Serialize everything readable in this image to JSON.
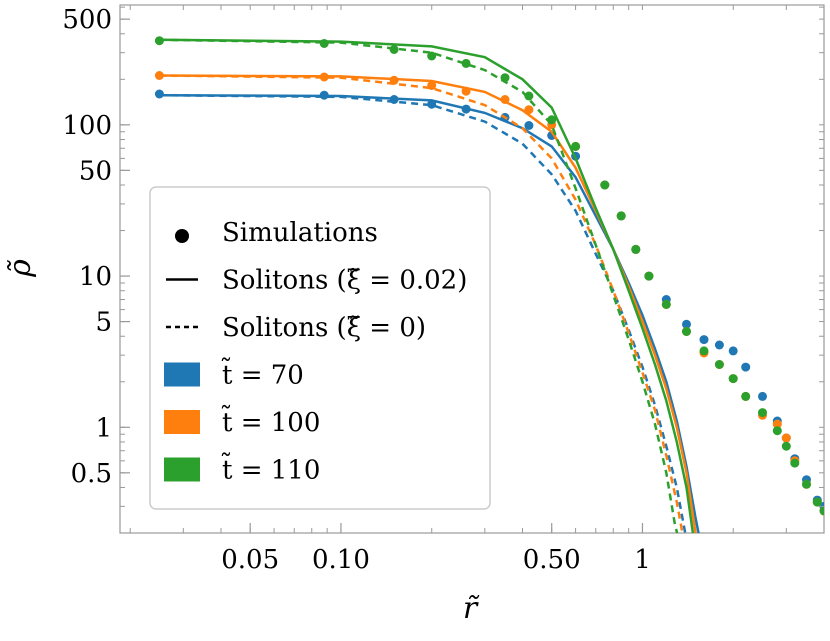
{
  "chart_data": {
    "type": "line",
    "xlabel": "r̃",
    "ylabel": "ρ̃",
    "xscale": "log",
    "yscale": "log",
    "xlim": [
      0.0185,
      4.0
    ],
    "ylim": [
      0.2,
      620
    ],
    "x_ticks": [
      {
        "value": 0.05,
        "label": "0.05"
      },
      {
        "value": 0.1,
        "label": "0.10"
      },
      {
        "value": 0.5,
        "label": "0.50"
      },
      {
        "value": 1,
        "label": "1"
      }
    ],
    "y_ticks": [
      {
        "value": 0.5,
        "label": "0.5"
      },
      {
        "value": 1,
        "label": "1"
      },
      {
        "value": 5,
        "label": "5"
      },
      {
        "value": 10,
        "label": "10"
      },
      {
        "value": 50,
        "label": "50"
      },
      {
        "value": 100,
        "label": "100"
      },
      {
        "value": 500,
        "label": "500"
      }
    ],
    "legend": {
      "placement": "left",
      "entries": [
        {
          "kind": "dot",
          "label": "Simulations"
        },
        {
          "kind": "solid",
          "label": "Solitons (ξ̃ = 0.02)"
        },
        {
          "kind": "dashed",
          "label": "Solitons (ξ̃ = 0)"
        },
        {
          "kind": "swatch",
          "color": "#1f77b4",
          "label": "t̃ = 70"
        },
        {
          "kind": "swatch",
          "color": "#ff7f0e",
          "label": "t̃ = 100"
        },
        {
          "kind": "swatch",
          "color": "#2ca02c",
          "label": "t̃ = 110"
        }
      ]
    },
    "series": [
      {
        "color": "#1f77b4",
        "simulations": [
          [
            0.025,
            160
          ],
          [
            0.088,
            157
          ],
          [
            0.15,
            147
          ],
          [
            0.2,
            137
          ],
          [
            0.26,
            127
          ],
          [
            0.35,
            112
          ],
          [
            0.42,
            99
          ],
          [
            0.5,
            85
          ],
          [
            0.6,
            62
          ],
          [
            0.75,
            40
          ],
          [
            0.85,
            25
          ],
          [
            0.95,
            15
          ],
          [
            1.05,
            10
          ],
          [
            1.2,
            7
          ],
          [
            1.4,
            4.8
          ],
          [
            1.6,
            3.8
          ],
          [
            1.8,
            3.5
          ],
          [
            2.0,
            3.2
          ],
          [
            2.2,
            2.5
          ],
          [
            2.5,
            1.6
          ],
          [
            2.8,
            1.1
          ],
          [
            3.0,
            0.85
          ],
          [
            3.2,
            0.62
          ],
          [
            3.5,
            0.45
          ],
          [
            3.8,
            0.33
          ],
          [
            4.0,
            0.3
          ]
        ],
        "soliton_xi_002": [
          [
            0.025,
            157
          ],
          [
            0.1,
            155
          ],
          [
            0.2,
            145
          ],
          [
            0.3,
            120
          ],
          [
            0.4,
            95
          ],
          [
            0.5,
            72
          ],
          [
            0.6,
            45
          ],
          [
            0.7,
            25
          ],
          [
            0.8,
            15
          ],
          [
            0.9,
            9
          ],
          [
            1.0,
            5.5
          ],
          [
            1.1,
            3.3
          ],
          [
            1.2,
            2
          ],
          [
            1.3,
            1.1
          ],
          [
            1.4,
            0.55
          ],
          [
            1.5,
            0.25
          ],
          [
            1.55,
            0.18
          ]
        ],
        "soliton_xi_0": [
          [
            0.025,
            157
          ],
          [
            0.1,
            153
          ],
          [
            0.2,
            135
          ],
          [
            0.3,
            105
          ],
          [
            0.4,
            75
          ],
          [
            0.5,
            47
          ],
          [
            0.6,
            27
          ],
          [
            0.7,
            14
          ],
          [
            0.8,
            8
          ],
          [
            0.9,
            4.4
          ],
          [
            1.0,
            2.5
          ],
          [
            1.1,
            1.4
          ],
          [
            1.2,
            0.75
          ],
          [
            1.3,
            0.4
          ],
          [
            1.4,
            0.18
          ]
        ]
      },
      {
        "color": "#ff7f0e",
        "simulations": [
          [
            0.025,
            212
          ],
          [
            0.088,
            207
          ],
          [
            0.15,
            197
          ],
          [
            0.2,
            182
          ],
          [
            0.26,
            167
          ],
          [
            0.35,
            147
          ],
          [
            0.42,
            126
          ],
          [
            0.5,
            100
          ],
          [
            0.6,
            72
          ],
          [
            0.75,
            40
          ],
          [
            0.85,
            25
          ],
          [
            0.95,
            15
          ],
          [
            1.05,
            10
          ],
          [
            1.2,
            6.5
          ],
          [
            1.4,
            4.3
          ],
          [
            1.6,
            3.1
          ],
          [
            1.8,
            2.6
          ],
          [
            2.0,
            2.1
          ],
          [
            2.2,
            1.6
          ],
          [
            2.5,
            1.2
          ],
          [
            2.8,
            1.05
          ],
          [
            3.0,
            0.85
          ],
          [
            3.2,
            0.6
          ],
          [
            3.5,
            0.42
          ],
          [
            3.8,
            0.32
          ],
          [
            4.0,
            0.28
          ]
        ],
        "soliton_xi_002": [
          [
            0.025,
            212
          ],
          [
            0.1,
            209
          ],
          [
            0.2,
            195
          ],
          [
            0.3,
            165
          ],
          [
            0.4,
            125
          ],
          [
            0.5,
            90
          ],
          [
            0.6,
            52
          ],
          [
            0.7,
            27
          ],
          [
            0.8,
            15
          ],
          [
            0.9,
            8.5
          ],
          [
            1.0,
            5
          ],
          [
            1.1,
            3
          ],
          [
            1.2,
            1.8
          ],
          [
            1.3,
            1
          ],
          [
            1.4,
            0.5
          ],
          [
            1.5,
            0.2
          ]
        ],
        "soliton_xi_0": [
          [
            0.025,
            212
          ],
          [
            0.1,
            205
          ],
          [
            0.2,
            175
          ],
          [
            0.3,
            135
          ],
          [
            0.4,
            95
          ],
          [
            0.5,
            60
          ],
          [
            0.6,
            32
          ],
          [
            0.7,
            16
          ],
          [
            0.8,
            8
          ],
          [
            0.9,
            4.2
          ],
          [
            1.0,
            2.3
          ],
          [
            1.1,
            1.3
          ],
          [
            1.2,
            0.65
          ],
          [
            1.3,
            0.32
          ],
          [
            1.37,
            0.18
          ]
        ]
      },
      {
        "color": "#2ca02c",
        "simulations": [
          [
            0.025,
            360
          ],
          [
            0.088,
            345
          ],
          [
            0.15,
            315
          ],
          [
            0.2,
            285
          ],
          [
            0.26,
            255
          ],
          [
            0.35,
            205
          ],
          [
            0.42,
            155
          ],
          [
            0.5,
            108
          ],
          [
            0.6,
            72
          ],
          [
            0.75,
            40
          ],
          [
            0.85,
            25
          ],
          [
            0.95,
            15
          ],
          [
            1.05,
            10
          ],
          [
            1.2,
            6.5
          ],
          [
            1.4,
            4.3
          ],
          [
            1.6,
            3.2
          ],
          [
            1.8,
            2.6
          ],
          [
            2.0,
            2.1
          ],
          [
            2.2,
            1.6
          ],
          [
            2.5,
            1.25
          ],
          [
            2.8,
            0.95
          ],
          [
            3.0,
            0.75
          ],
          [
            3.2,
            0.58
          ],
          [
            3.5,
            0.42
          ],
          [
            3.8,
            0.32
          ],
          [
            4.0,
            0.28
          ]
        ],
        "soliton_xi_002": [
          [
            0.025,
            365
          ],
          [
            0.1,
            355
          ],
          [
            0.2,
            330
          ],
          [
            0.3,
            280
          ],
          [
            0.4,
            200
          ],
          [
            0.5,
            130
          ],
          [
            0.6,
            60
          ],
          [
            0.7,
            28
          ],
          [
            0.8,
            15
          ],
          [
            0.9,
            8
          ],
          [
            1.0,
            4.5
          ],
          [
            1.1,
            2.6
          ],
          [
            1.2,
            1.5
          ],
          [
            1.3,
            0.8
          ],
          [
            1.4,
            0.4
          ],
          [
            1.47,
            0.2
          ]
        ],
        "soliton_xi_0": [
          [
            0.025,
            365
          ],
          [
            0.1,
            350
          ],
          [
            0.2,
            300
          ],
          [
            0.3,
            230
          ],
          [
            0.4,
            165
          ],
          [
            0.5,
            100
          ],
          [
            0.6,
            38
          ],
          [
            0.7,
            16
          ],
          [
            0.8,
            7.5
          ],
          [
            0.9,
            3.8
          ],
          [
            1.0,
            2
          ],
          [
            1.1,
            1.05
          ],
          [
            1.2,
            0.5
          ],
          [
            1.28,
            0.23
          ],
          [
            1.32,
            0.18
          ]
        ]
      }
    ]
  }
}
